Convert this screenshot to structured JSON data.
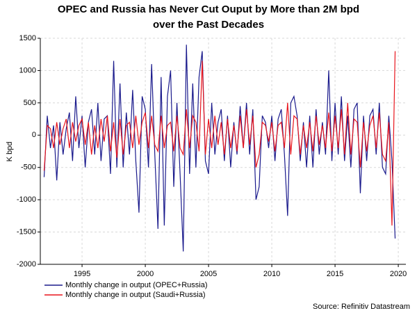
{
  "chart_data": {
    "type": "line",
    "title": [
      "OPEC and Russia has Never Cut Ouput by More than 2M bpd",
      "over the Past Decades"
    ],
    "y_label": "K bpd",
    "source": "Source: Refinitiv Datastream",
    "xlim": [
      1991.7,
      2020.6
    ],
    "xticks": [
      1995,
      2000,
      2005,
      2010,
      2015,
      2020
    ],
    "ylim": [
      -2000,
      1500
    ],
    "yticks": [
      -2000,
      -1500,
      -1000,
      -500,
      0,
      500,
      1000,
      1500
    ],
    "grid": true,
    "legend": "bottom",
    "x": [
      1992,
      1992.25,
      1992.5,
      1992.75,
      1993,
      1993.25,
      1993.5,
      1993.75,
      1994,
      1994.25,
      1994.5,
      1994.75,
      1995,
      1995.25,
      1995.5,
      1995.75,
      1996,
      1996.25,
      1996.5,
      1996.75,
      1997,
      1997.25,
      1997.5,
      1997.75,
      1998,
      1998.25,
      1998.5,
      1998.75,
      1999,
      1999.25,
      1999.5,
      1999.75,
      2000,
      2000.25,
      2000.5,
      2000.75,
      2001,
      2001.25,
      2001.5,
      2001.75,
      2002,
      2002.25,
      2002.5,
      2002.75,
      2003,
      2003.25,
      2003.5,
      2003.75,
      2004,
      2004.25,
      2004.5,
      2004.75,
      2005,
      2005.25,
      2005.5,
      2005.75,
      2006,
      2006.25,
      2006.5,
      2006.75,
      2007,
      2007.25,
      2007.5,
      2007.75,
      2008,
      2008.25,
      2008.5,
      2008.75,
      2009,
      2009.25,
      2009.5,
      2009.75,
      2010,
      2010.25,
      2010.5,
      2010.75,
      2011,
      2011.25,
      2011.5,
      2011.75,
      2012,
      2012.25,
      2012.5,
      2012.75,
      2013,
      2013.25,
      2013.5,
      2013.75,
      2014,
      2014.25,
      2014.5,
      2014.75,
      2015,
      2015.25,
      2015.5,
      2015.75,
      2016,
      2016.25,
      2016.5,
      2016.75,
      2017,
      2017.25,
      2017.5,
      2017.75,
      2018,
      2018.25,
      2018.5,
      2018.75,
      2019,
      2019.25,
      2019.5,
      2019.75
    ],
    "series": [
      {
        "name": "Monthly change in output (OPEC+Russia)",
        "color": "#1a1a8c",
        "values": [
          -650,
          300,
          -200,
          150,
          -700,
          200,
          -300,
          100,
          350,
          -400,
          600,
          -200,
          300,
          -500,
          200,
          400,
          -300,
          500,
          -400,
          250,
          300,
          -600,
          1150,
          -500,
          800,
          -500,
          350,
          -300,
          700,
          -400,
          -1200,
          600,
          400,
          -500,
          1100,
          -300,
          -1450,
          900,
          -1400,
          600,
          1000,
          -800,
          500,
          -600,
          -1800,
          1400,
          -600,
          800,
          -500,
          900,
          1300,
          -400,
          -600,
          500,
          -300,
          200,
          400,
          -400,
          300,
          -500,
          200,
          -300,
          450,
          -200,
          500,
          -300,
          400,
          -1000,
          -800,
          300,
          200,
          -200,
          300,
          -400,
          250,
          400,
          -300,
          -1250,
          500,
          600,
          300,
          -400,
          200,
          -500,
          300,
          -500,
          400,
          -300,
          200,
          -300,
          1000,
          -400,
          500,
          -300,
          600,
          -400,
          300,
          -500,
          400,
          500,
          -900,
          300,
          -400,
          300,
          400,
          -300,
          500,
          -500,
          -600,
          300,
          -400,
          -1600
        ]
      },
      {
        "name": "Monthly change in output (Saudi+Russia)",
        "color": "#e8141c",
        "values": [
          -550,
          150,
          100,
          -200,
          200,
          -150,
          100,
          250,
          -200,
          200,
          -100,
          150,
          250,
          -150,
          200,
          -300,
          150,
          -200,
          250,
          -100,
          300,
          -250,
          200,
          -350,
          250,
          -300,
          150,
          200,
          -200,
          300,
          -150,
          200,
          350,
          -200,
          300,
          -150,
          -250,
          300,
          -200,
          150,
          200,
          -250,
          300,
          -200,
          -300,
          400,
          -200,
          300,
          200,
          -250,
          1150,
          -300,
          250,
          -200,
          300,
          -150,
          200,
          -300,
          250,
          -200,
          150,
          -250,
          300,
          -200,
          400,
          -150,
          300,
          -500,
          -300,
          200,
          150,
          -100,
          200,
          -250,
          150,
          200,
          -200,
          500,
          -300,
          300,
          250,
          -300,
          150,
          -200,
          200,
          -250,
          300,
          -150,
          150,
          -200,
          350,
          -250,
          300,
          -200,
          400,
          -300,
          500,
          -300,
          250,
          200,
          -500,
          200,
          -250,
          150,
          300,
          -200,
          350,
          -300,
          -400,
          200,
          -1400,
          1300
        ]
      }
    ]
  }
}
